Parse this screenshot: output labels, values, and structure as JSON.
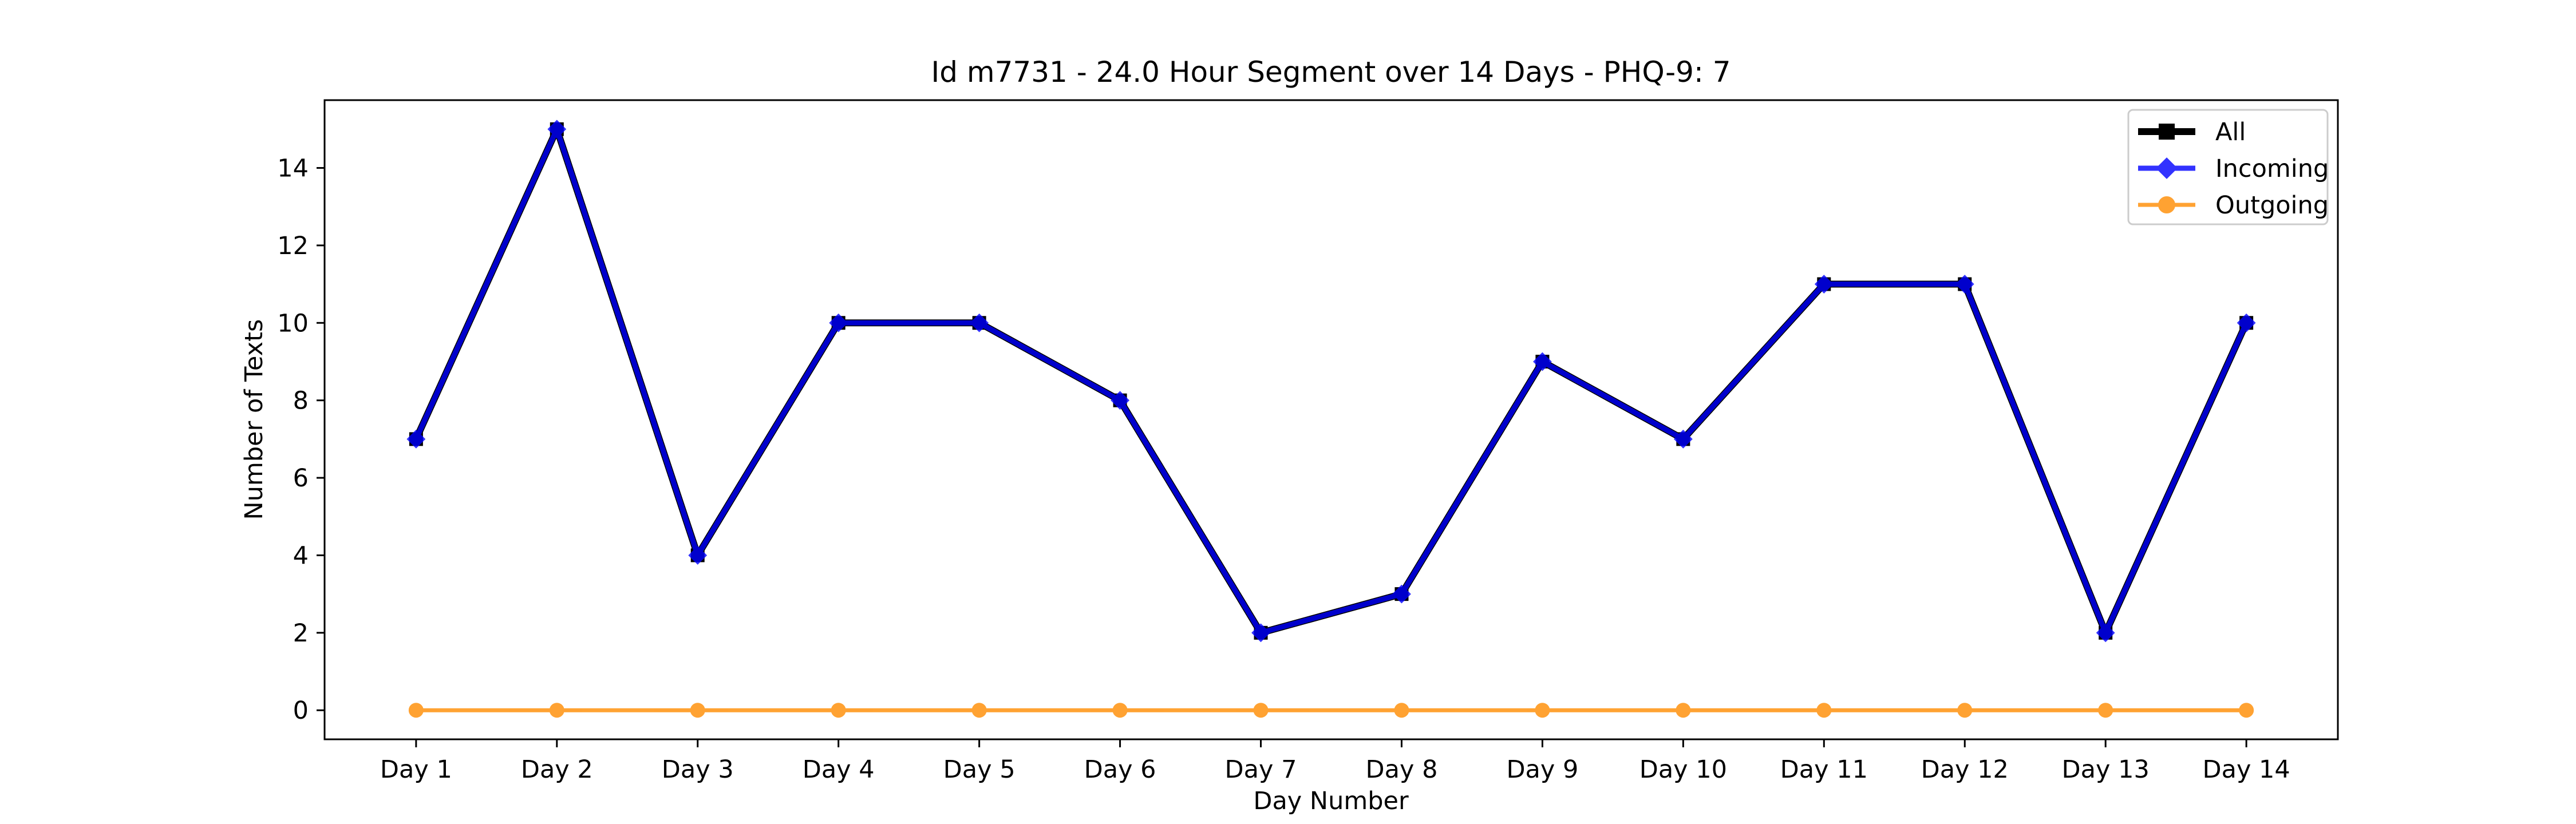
{
  "chart_data": {
    "type": "line",
    "title": "Id m7731 - 24.0 Hour Segment over 14 Days - PHQ-9: 7",
    "xlabel": "Day Number",
    "ylabel": "Number of Texts",
    "categories": [
      "Day 1",
      "Day 2",
      "Day 3",
      "Day 4",
      "Day 5",
      "Day 6",
      "Day 7",
      "Day 8",
      "Day 9",
      "Day 10",
      "Day 11",
      "Day 12",
      "Day 13",
      "Day 14"
    ],
    "ylim": [
      -0.75,
      15.75
    ],
    "yticks": [
      0,
      2,
      4,
      6,
      8,
      10,
      12,
      14
    ],
    "grid": false,
    "legend_position": "top-right",
    "series": [
      {
        "name": "All",
        "values": [
          7,
          15,
          4,
          10,
          10,
          8,
          2,
          3,
          9,
          7,
          11,
          11,
          2,
          10
        ],
        "color": "#000000",
        "marker": "square"
      },
      {
        "name": "Incoming",
        "values": [
          7,
          15,
          4,
          10,
          10,
          8,
          2,
          3,
          9,
          7,
          11,
          11,
          2,
          10
        ],
        "color": "#0000ff",
        "marker": "diamond"
      },
      {
        "name": "Outgoing",
        "values": [
          0,
          0,
          0,
          0,
          0,
          0,
          0,
          0,
          0,
          0,
          0,
          0,
          0,
          0
        ],
        "color": "#ff8c00",
        "marker": "circle"
      }
    ]
  }
}
